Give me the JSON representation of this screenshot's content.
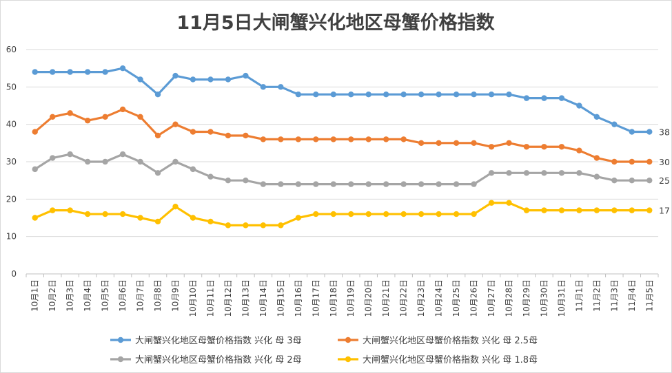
{
  "chart_data": {
    "type": "line",
    "title": "11月5日大闸蟹兴化地区母蟹价格指数",
    "xlabel": "",
    "ylabel": "",
    "ylim": [
      0,
      60
    ],
    "yticks": [
      "0",
      "10",
      "20",
      "30",
      "40",
      "50",
      "60"
    ],
    "grid": true,
    "legend_position": "bottom",
    "categories": [
      "10月1日",
      "10月2日",
      "10月3日",
      "10月4日",
      "10月5日",
      "10月6日",
      "10月7日",
      "10月8日",
      "10月9日",
      "10月10日",
      "10月11日",
      "10月12日",
      "10月13日",
      "10月14日",
      "10月15日",
      "10月16日",
      "10月17日",
      "10月18日",
      "10月19日",
      "10月20日",
      "10月21日",
      "10月22日",
      "10月23日",
      "10月24日",
      "10月25日",
      "10月26日",
      "10月27日",
      "10月28日",
      "10月29日",
      "10月30日",
      "10月31日",
      "11月1日",
      "11月2日",
      "11月3日",
      "11月4日",
      "11月5日"
    ],
    "series": [
      {
        "name": "大闸蟹兴化地区母蟹价格指数 兴化 母 3母",
        "color": "#5B9BD5",
        "end_label": "38",
        "values": [
          54,
          54,
          54,
          54,
          54,
          55,
          52,
          48,
          53,
          52,
          52,
          52,
          53,
          50,
          50,
          48,
          48,
          48,
          48,
          48,
          48,
          48,
          48,
          48,
          48,
          48,
          48,
          48,
          47,
          47,
          47,
          45,
          42,
          40,
          38,
          38
        ]
      },
      {
        "name": "大闸蟹兴化地区母蟹价格指数 兴化 母 2.5母",
        "color": "#ED7D31",
        "end_label": "30",
        "values": [
          38,
          42,
          43,
          41,
          42,
          44,
          42,
          37,
          40,
          38,
          38,
          37,
          37,
          36,
          36,
          36,
          36,
          36,
          36,
          36,
          36,
          36,
          35,
          35,
          35,
          35,
          34,
          35,
          34,
          34,
          34,
          33,
          31,
          30,
          30,
          30
        ]
      },
      {
        "name": "大闸蟹兴化地区母蟹价格指数 兴化 母 2母",
        "color": "#A5A5A5",
        "end_label": "25",
        "values": [
          28,
          31,
          32,
          30,
          30,
          32,
          30,
          27,
          30,
          28,
          26,
          25,
          25,
          24,
          24,
          24,
          24,
          24,
          24,
          24,
          24,
          24,
          24,
          24,
          24,
          24,
          27,
          27,
          27,
          27,
          27,
          27,
          26,
          25,
          25,
          25
        ]
      },
      {
        "name": "大闸蟹兴化地区母蟹价格指数 兴化 母 1.8母",
        "color": "#FFC000",
        "end_label": "17",
        "values": [
          15,
          17,
          17,
          16,
          16,
          16,
          15,
          14,
          18,
          15,
          14,
          13,
          13,
          13,
          13,
          15,
          16,
          16,
          16,
          16,
          16,
          16,
          16,
          16,
          16,
          16,
          19,
          19,
          17,
          17,
          17,
          17,
          17,
          17,
          17,
          17
        ]
      }
    ]
  }
}
